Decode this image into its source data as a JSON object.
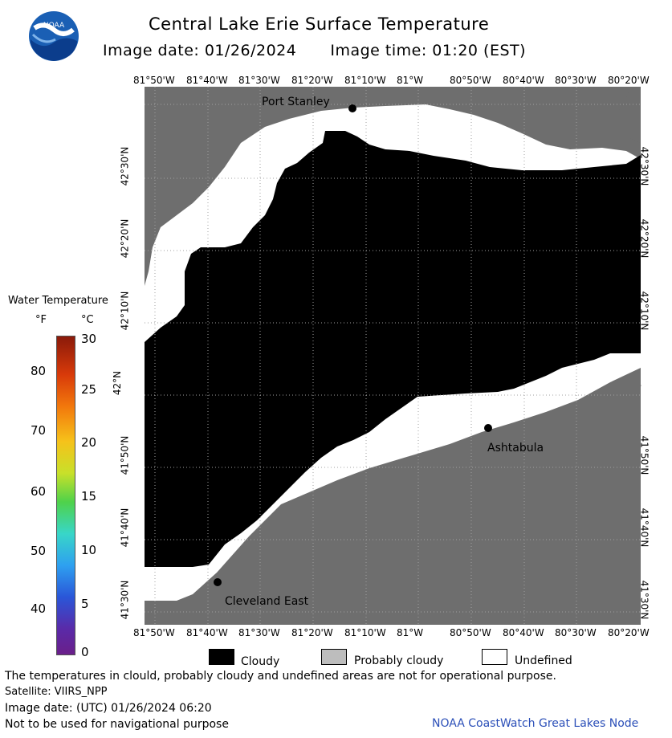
{
  "header": {
    "title": "Central Lake Erie Surface Temperature",
    "image_date": "Image date: 01/26/2024",
    "image_time": "Image time: 01:20 (EST)"
  },
  "logo": {
    "text": "NOAA"
  },
  "map": {
    "lon_labels": [
      "81°50'W",
      "81°40'W",
      "81°30'W",
      "81°20'W",
      "81°10'W",
      "81°W",
      "80°50'W",
      "80°40'W",
      "80°30'W",
      "80°20'W"
    ],
    "lat_labels": [
      "42°30'N",
      "42°20'N",
      "42°10'N",
      "42°N",
      "41°50'N",
      "41°40'N",
      "41°30'N"
    ],
    "places": {
      "port_stanley": "Port Stanley",
      "ashtabula": "Ashtabula",
      "cleveland_east": "Cleveland East"
    },
    "colors": {
      "land": "#6e6e6e",
      "cloudy": "#000000",
      "undefined": "#ffffff",
      "grid": "#a0a0a0"
    }
  },
  "legend": {
    "title": "Water Temperature",
    "unit_f": "°F",
    "unit_c": "°C",
    "f_ticks": [
      "80",
      "70",
      "60",
      "50",
      "40"
    ],
    "c_ticks": [
      "30",
      "25",
      "20",
      "15",
      "10",
      "5",
      "0"
    ]
  },
  "key": {
    "cloudy": "Cloudy",
    "probably_cloudy": "Probably cloudy",
    "undefined": "Undefined"
  },
  "footer": {
    "line1": "The temperatures in clould, probably cloudy and undefined areas are not for operational purpose.",
    "line2": "Satellite: VIIRS_NPP",
    "line3": "Image date: (UTC) 01/26/2024  06:20",
    "line4": "Not to be used for navigational purpose",
    "credit": "NOAA CoastWatch Great Lakes Node"
  }
}
